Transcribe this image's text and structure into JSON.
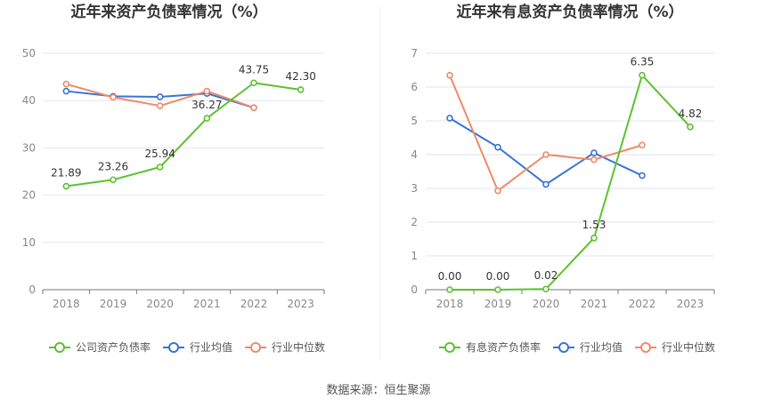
{
  "source_label": "数据来源：恒生聚源",
  "colors": {
    "company": "#5cc22f",
    "avg": "#3874d8",
    "median": "#f08a66",
    "grid": "#e3e6ee",
    "axis": "#777777"
  },
  "chart_data": [
    {
      "type": "line",
      "title": "近年来资产负债率情况（%）",
      "categories": [
        "2018",
        "2019",
        "2020",
        "2021",
        "2022",
        "2023"
      ],
      "ylim": [
        0,
        50
      ],
      "yticks": [
        0,
        10,
        20,
        30,
        40,
        50
      ],
      "grid": true,
      "legend": "bottom",
      "series": [
        {
          "name": "公司资产负债率",
          "color_key": "company",
          "values": [
            21.89,
            23.26,
            25.94,
            36.27,
            43.75,
            42.3
          ],
          "labels": [
            "21.89",
            "23.26",
            "25.94",
            "36.27",
            "43.75",
            "42.30"
          ]
        },
        {
          "name": "行业均值",
          "color_key": "avg",
          "values": [
            42.0,
            40.9,
            40.8,
            41.5,
            38.5,
            null
          ]
        },
        {
          "name": "行业中位数",
          "color_key": "median",
          "values": [
            43.5,
            40.7,
            38.9,
            42.0,
            38.5,
            null
          ]
        }
      ]
    },
    {
      "type": "line",
      "title": "近年来有息资产负债率情况（%）",
      "categories": [
        "2018",
        "2019",
        "2020",
        "2021",
        "2022",
        "2023"
      ],
      "ylim": [
        0,
        7
      ],
      "yticks": [
        0,
        1,
        2,
        3,
        4,
        5,
        6,
        7
      ],
      "grid": true,
      "legend": "bottom",
      "series": [
        {
          "name": "有息资产负债率",
          "color_key": "company",
          "values": [
            0.0,
            0.0,
            0.02,
            1.53,
            6.35,
            4.82
          ],
          "labels": [
            "0.00",
            "0.00",
            "0.02",
            "1.53",
            "6.35",
            "4.82"
          ]
        },
        {
          "name": "行业均值",
          "color_key": "avg",
          "values": [
            5.08,
            4.22,
            3.12,
            4.05,
            3.38,
            null
          ]
        },
        {
          "name": "行业中位数",
          "color_key": "median",
          "values": [
            6.35,
            2.93,
            4.0,
            3.85,
            4.28,
            null
          ]
        }
      ]
    }
  ]
}
